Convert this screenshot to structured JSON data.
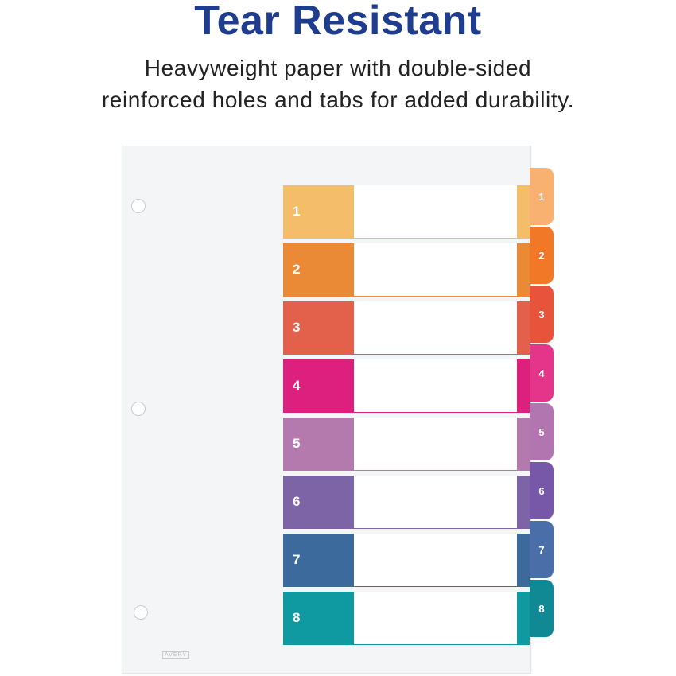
{
  "heading": {
    "title": "Tear Resistant"
  },
  "description": {
    "line1": "Heavyweight paper with double-sided",
    "line2": "reinforced holes and tabs for added durability."
  },
  "divider": {
    "brand": "AVERY",
    "entries": [
      {
        "label": "1",
        "color": "#f3bd6a",
        "tab_color": "#f8b170"
      },
      {
        "label": "2",
        "color": "#eb8a36",
        "tab_color": "#f07826"
      },
      {
        "label": "3",
        "color": "#e3614b",
        "tab_color": "#e8533c"
      },
      {
        "label": "4",
        "color": "#dd1f7e",
        "tab_color": "#e5358a"
      },
      {
        "label": "5",
        "color": "#b47aae",
        "tab_color": "#b275b0"
      },
      {
        "label": "6",
        "color": "#7d64a7",
        "tab_color": "#7757a7"
      },
      {
        "label": "7",
        "color": "#3d6a9c",
        "tab_color": "#4a6fa8"
      },
      {
        "label": "8",
        "color": "#0e9aa0",
        "tab_color": "#108995"
      }
    ]
  }
}
